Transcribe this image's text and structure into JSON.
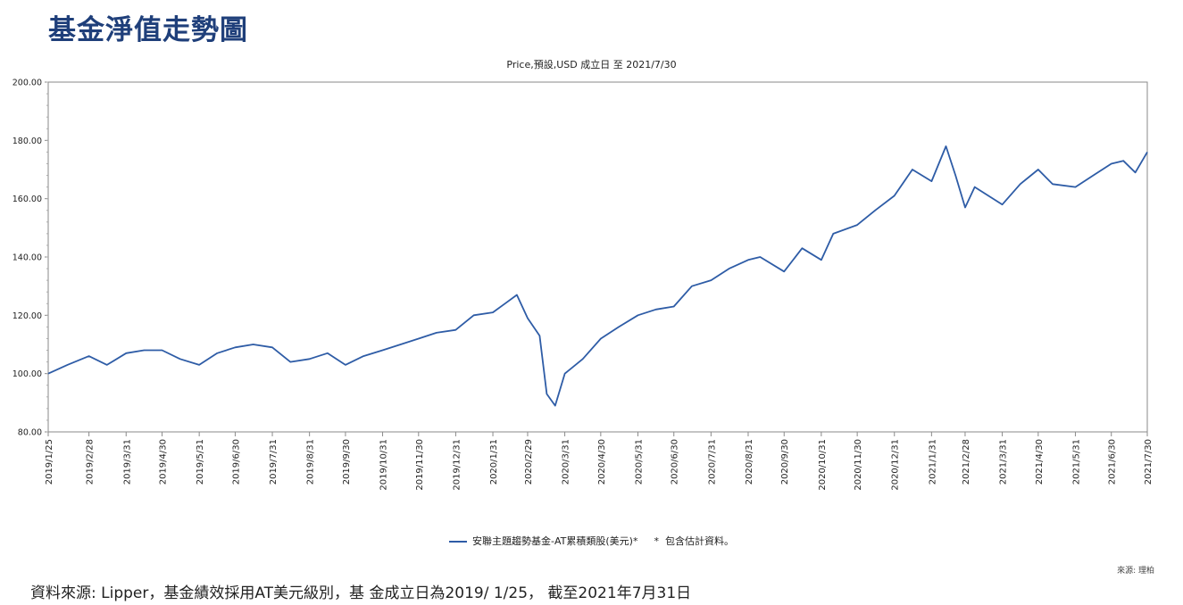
{
  "page": {
    "title": "基金淨值走勢圖",
    "footnote": "資料來源: Lipper，基金績效採用AT美元級別，基 金成立日為2019/ 1/25， 截至2021年7月31日",
    "source_note": "來源: 理柏"
  },
  "chart_data": {
    "type": "line",
    "subtitle": "Price,預設,USD 成立日 至 2021/7/30",
    "ylim": [
      80,
      200
    ],
    "y_ticks": [
      "80.00",
      "100.00",
      "120.00",
      "140.00",
      "160.00",
      "180.00",
      "200.00"
    ],
    "x_ticks": [
      "2019/1/25",
      "2019/2/28",
      "2019/3/31",
      "2019/4/30",
      "2019/5/31",
      "2019/6/30",
      "2019/7/31",
      "2019/8/31",
      "2019/9/30",
      "2019/10/31",
      "2019/11/30",
      "2019/12/31",
      "2020/1/31",
      "2020/2/29",
      "2020/3/31",
      "2020/4/30",
      "2020/5/31",
      "2020/6/30",
      "2020/7/31",
      "2020/8/31",
      "2020/9/30",
      "2020/10/31",
      "2020/11/30",
      "2020/12/31",
      "2021/1/31",
      "2021/2/28",
      "2021/3/31",
      "2021/4/30",
      "2021/5/31",
      "2021/6/30",
      "2021/7/30"
    ],
    "grid": false,
    "legend_position": "bottom-center",
    "colors": {
      "series": "#2e5ca6",
      "axis": "#888888"
    },
    "series": [
      {
        "name": "安聯主題趨勢基金-AT累積類股(美元)*",
        "x": [
          "2019/1/25",
          "2019/2/10",
          "2019/2/28",
          "2019/3/15",
          "2019/3/31",
          "2019/4/15",
          "2019/4/30",
          "2019/5/15",
          "2019/5/31",
          "2019/6/15",
          "2019/6/30",
          "2019/7/15",
          "2019/7/31",
          "2019/8/15",
          "2019/8/31",
          "2019/9/15",
          "2019/9/30",
          "2019/10/15",
          "2019/10/31",
          "2019/11/15",
          "2019/11/30",
          "2019/12/15",
          "2019/12/31",
          "2020/1/15",
          "2020/1/31",
          "2020/2/10",
          "2020/2/20",
          "2020/2/29",
          "2020/3/10",
          "2020/3/16",
          "2020/3/23",
          "2020/3/31",
          "2020/4/15",
          "2020/4/30",
          "2020/5/15",
          "2020/5/31",
          "2020/6/15",
          "2020/6/30",
          "2020/7/15",
          "2020/7/31",
          "2020/8/15",
          "2020/8/31",
          "2020/9/10",
          "2020/9/30",
          "2020/10/15",
          "2020/10/31",
          "2020/11/10",
          "2020/11/30",
          "2020/12/15",
          "2020/12/31",
          "2021/1/15",
          "2021/1/31",
          "2021/2/12",
          "2021/2/20",
          "2021/2/28",
          "2021/3/8",
          "2021/3/31",
          "2021/4/15",
          "2021/4/30",
          "2021/5/12",
          "2021/5/31",
          "2021/6/15",
          "2021/6/30",
          "2021/7/10",
          "2021/7/20",
          "2021/7/30"
        ],
        "values": [
          100,
          103,
          106,
          103,
          107,
          108,
          108,
          105,
          103,
          107,
          109,
          110,
          109,
          104,
          105,
          107,
          103,
          106,
          108,
          110,
          112,
          114,
          115,
          120,
          121,
          124,
          127,
          119,
          113,
          93,
          89,
          100,
          105,
          112,
          116,
          120,
          122,
          123,
          130,
          132,
          136,
          139,
          140,
          135,
          143,
          139,
          148,
          151,
          156,
          161,
          170,
          166,
          178,
          168,
          157,
          164,
          158,
          165,
          170,
          165,
          164,
          168,
          172,
          173,
          169,
          176
        ]
      }
    ]
  }
}
